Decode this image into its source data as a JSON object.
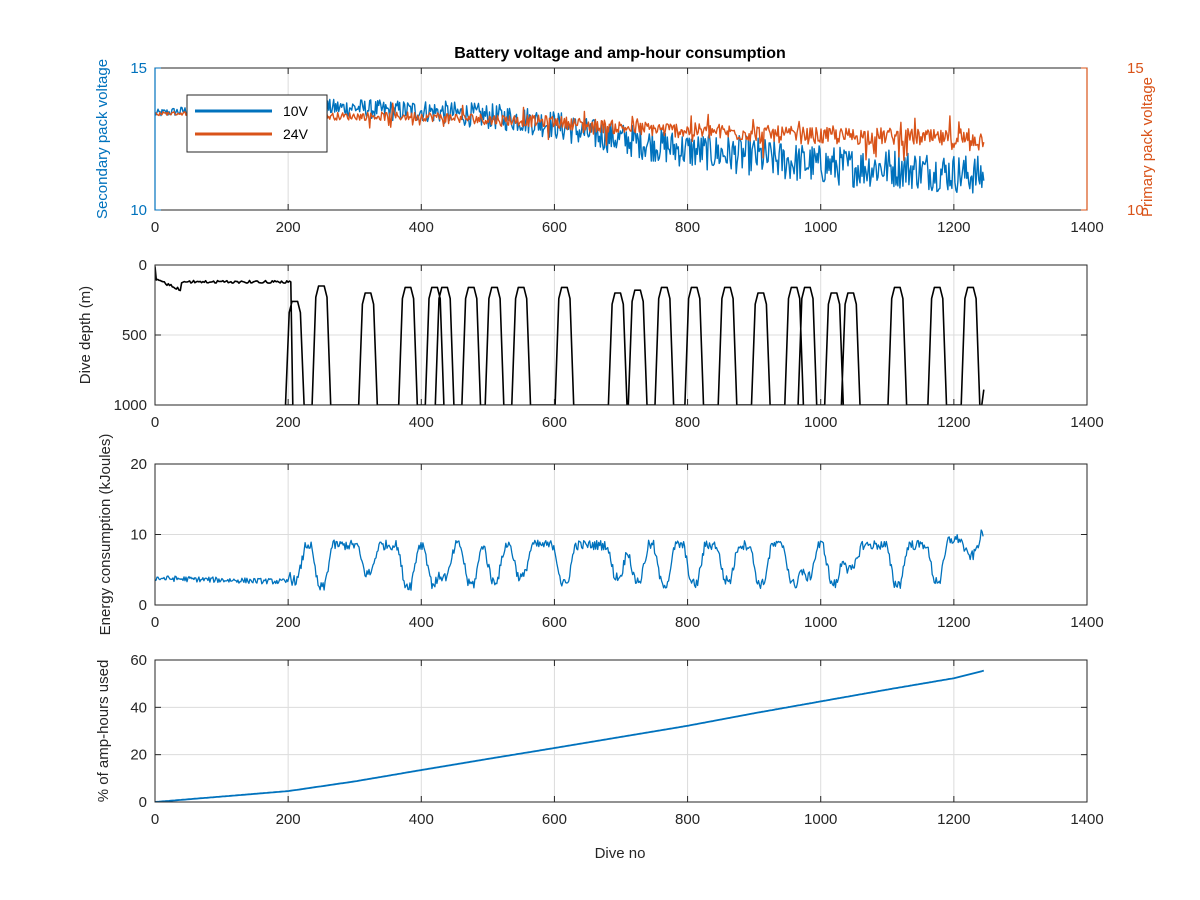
{
  "figure": {
    "title": "Battery voltage and amp-hour consumption",
    "xlabel": "Dive no"
  },
  "colors": {
    "blue": "#0072BD",
    "orange": "#D95319",
    "black": "#000000",
    "grid": "#dcdcdc",
    "axis": "#262626"
  },
  "chart_data": [
    {
      "type": "line",
      "title": "Battery voltage and amp-hour consumption",
      "xlim": [
        0,
        1400
      ],
      "xticks": [
        0,
        200,
        400,
        600,
        800,
        1000,
        1200,
        1400
      ],
      "ylabel_left": "Secondary pack voltage",
      "ylabel_right": "Primary pack voltage",
      "ylim_left": [
        10,
        15
      ],
      "ylim_right": [
        10,
        15
      ],
      "yticks_left": [
        10,
        15
      ],
      "yticks_right": [
        10,
        15
      ],
      "legend": {
        "placement": "top-left",
        "entries": [
          "10V",
          "24V"
        ]
      },
      "grid": true,
      "series": [
        {
          "name": "10V",
          "axis": "left",
          "color": "#0072BD",
          "noise": 0.35,
          "x": [
            0,
            50,
            100,
            150,
            200,
            250,
            300,
            350,
            400,
            450,
            500,
            550,
            600,
            650,
            700,
            750,
            800,
            850,
            900,
            950,
            1000,
            1050,
            1100,
            1150,
            1200,
            1245
          ],
          "y": [
            13.4,
            13.5,
            13.6,
            13.5,
            13.6,
            13.6,
            13.6,
            13.5,
            13.5,
            13.4,
            13.3,
            13.2,
            13.0,
            12.7,
            12.5,
            12.3,
            12.1,
            12.0,
            11.9,
            11.7,
            11.6,
            11.5,
            11.5,
            11.4,
            11.3,
            11.2
          ]
        },
        {
          "name": "24V",
          "axis": "right",
          "color": "#D95319",
          "noise": 0.15,
          "x": [
            0,
            100,
            200,
            300,
            400,
            500,
            600,
            700,
            800,
            900,
            1000,
            1100,
            1200,
            1245
          ],
          "y": [
            13.4,
            13.4,
            13.3,
            13.3,
            13.3,
            13.2,
            13.1,
            12.9,
            12.8,
            12.7,
            12.6,
            12.6,
            12.5,
            12.5
          ]
        }
      ]
    },
    {
      "type": "line",
      "xlim": [
        0,
        1400
      ],
      "xticks": [
        0,
        200,
        400,
        600,
        800,
        1000,
        1200,
        1400
      ],
      "ylabel": "Dive depth (m)",
      "ylim": [
        0,
        1000
      ],
      "y_reversed": true,
      "yticks": [
        0,
        500,
        1000
      ],
      "grid": true,
      "series": [
        {
          "color": "#000000",
          "surface": {
            "x_start": 0,
            "x_end": 205,
            "depth_start": 120,
            "depth_end": 120
          },
          "dives_x": [
            210,
            250,
            320,
            380,
            420,
            435,
            475,
            510,
            550,
            615,
            695,
            725,
            765,
            810,
            860,
            910,
            960,
            980,
            1020,
            1045,
            1115,
            1175,
            1225
          ],
          "dive_min_depth": [
            260,
            150,
            200,
            160,
            160,
            160,
            160,
            160,
            160,
            160,
            200,
            180,
            160,
            160,
            160,
            200,
            160,
            160,
            200,
            200,
            160,
            160,
            160
          ],
          "dive_width": 28,
          "bottom_depth": 1000,
          "x_end": 1245,
          "end_depth": 890
        }
      ]
    },
    {
      "type": "line",
      "xlim": [
        0,
        1400
      ],
      "xticks": [
        0,
        200,
        400,
        600,
        800,
        1000,
        1200,
        1400
      ],
      "ylabel": "Energy consumption (kJoules)",
      "ylim": [
        0,
        20
      ],
      "yticks": [
        0,
        10,
        20
      ],
      "grid": true,
      "series": [
        {
          "color": "#0072BD",
          "baseline": {
            "x_start": 0,
            "x_end": 200,
            "y_start": 3.8,
            "y_end": 3.3
          },
          "dives_x": [
            210,
            250,
            320,
            380,
            420,
            435,
            475,
            510,
            550,
            615,
            695,
            725,
            765,
            810,
            860,
            910,
            960,
            980,
            1020,
            1045,
            1115,
            1175,
            1225
          ],
          "dive_energy_low": [
            3.5,
            2.5,
            4.5,
            2.8,
            3.0,
            4.0,
            3.0,
            3.5,
            4.0,
            3.0,
            4.0,
            3.5,
            3.0,
            3.0,
            3.5,
            3.0,
            3.0,
            4.0,
            3.0,
            5.0,
            3.0,
            3.5,
            7.0
          ],
          "plateau_level": 8.5,
          "end_level": 10.0,
          "x_end": 1245
        }
      ]
    },
    {
      "type": "line",
      "xlim": [
        0,
        1400
      ],
      "xticks": [
        0,
        200,
        400,
        600,
        800,
        1000,
        1200,
        1400
      ],
      "ylabel": "% of amp-hours used",
      "ylim": [
        0,
        60
      ],
      "yticks": [
        0,
        20,
        40,
        60
      ],
      "xlabel": "Dive no",
      "grid": true,
      "series": [
        {
          "color": "#0072BD",
          "x": [
            0,
            100,
            200,
            300,
            400,
            500,
            600,
            700,
            800,
            900,
            1000,
            1100,
            1200,
            1245
          ],
          "y": [
            0,
            2.3,
            4.6,
            8.7,
            13.5,
            18.2,
            22.8,
            27.5,
            32.2,
            37.5,
            42.5,
            47.5,
            52.3,
            55.5
          ]
        }
      ]
    }
  ]
}
